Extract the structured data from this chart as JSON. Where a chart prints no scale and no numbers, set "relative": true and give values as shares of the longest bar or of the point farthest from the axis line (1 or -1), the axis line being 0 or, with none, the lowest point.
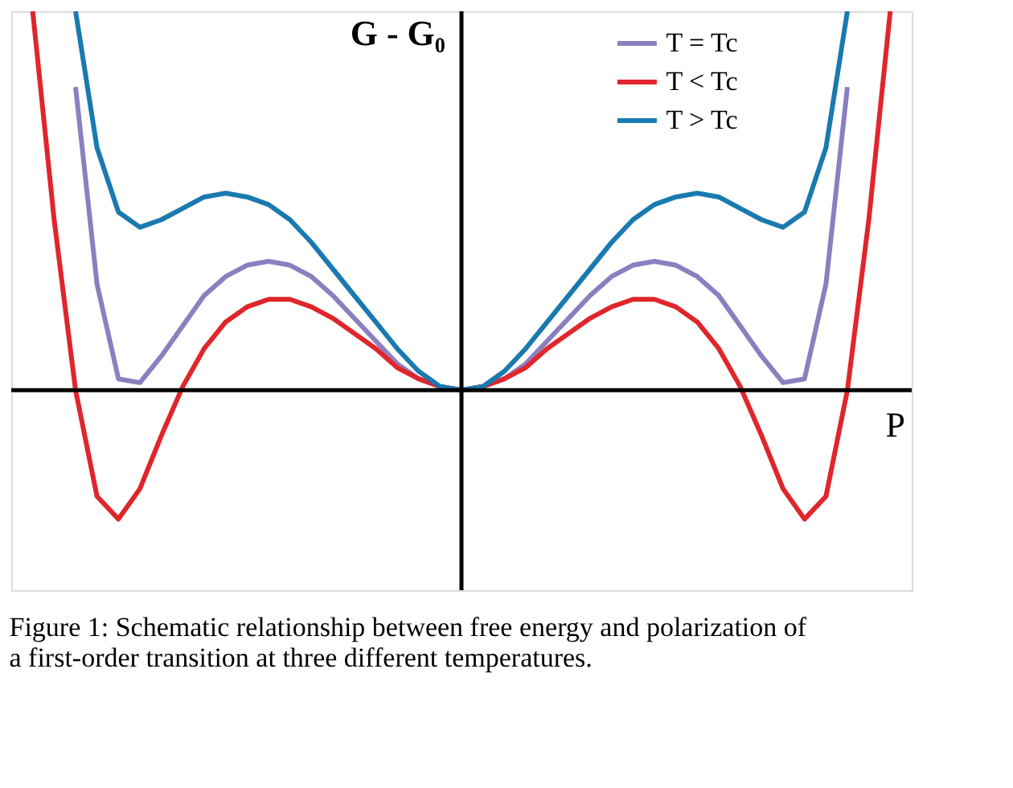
{
  "chart_data": {
    "type": "line",
    "relative": true,
    "xlabel": "P",
    "ylabel": "G - G₀",
    "legend": "top right",
    "tick_labels": false,
    "grid": false,
    "marker": "none",
    "line_style": "solid",
    "annotations": [
      "Figure 1: Schematic relationship between free energy and polarization of a first-order transition at three different temperatures."
    ],
    "categories": [
      null,
      null,
      null,
      null,
      null,
      null,
      null,
      null,
      null,
      null,
      null,
      null,
      null,
      null,
      null,
      null,
      null,
      null,
      null,
      null,
      null,
      null,
      null,
      null,
      null,
      null,
      null,
      null,
      null,
      null,
      null,
      null,
      null,
      null,
      null,
      null,
      null,
      null,
      null,
      null,
      null
    ],
    "series": [
      {
        "name": "T = Tc",
        "color": "#8c7fc0",
        "values": [
          null,
          null,
          0.8,
          0.28,
          0.03,
          0.02,
          0.09,
          0.17,
          0.25,
          0.3,
          0.33,
          0.34,
          0.33,
          0.3,
          0.25,
          0.19,
          0.13,
          0.07,
          0.03,
          0.01,
          0,
          0.01,
          0.03,
          0.07,
          0.13,
          0.19,
          0.25,
          0.3,
          0.33,
          0.34,
          0.33,
          0.3,
          0.25,
          0.17,
          0.09,
          0.02,
          0.03,
          0.28,
          0.8,
          null,
          null
        ]
      },
      {
        "name": "T < Tc",
        "color": "#e0262b",
        "values": [
          1.0,
          0.45,
          0.0,
          -0.28,
          -0.34,
          -0.26,
          -0.12,
          0.01,
          0.11,
          0.18,
          0.22,
          0.24,
          0.24,
          0.22,
          0.19,
          0.15,
          0.11,
          0.06,
          0.03,
          0.01,
          0,
          0.01,
          0.03,
          0.06,
          0.11,
          0.15,
          0.19,
          0.22,
          0.24,
          0.24,
          0.22,
          0.18,
          0.11,
          0.01,
          -0.12,
          -0.26,
          -0.34,
          -0.28,
          0.0,
          0.45,
          1.0
        ]
      },
      {
        "name": "T > Tc",
        "color": "#1a7ab0",
        "values": [
          null,
          null,
          1.0,
          0.64,
          0.47,
          0.43,
          0.45,
          0.48,
          0.51,
          0.52,
          0.51,
          0.49,
          0.45,
          0.39,
          0.32,
          0.25,
          0.18,
          0.11,
          0.05,
          0.01,
          0,
          0.01,
          0.05,
          0.11,
          0.18,
          0.25,
          0.32,
          0.39,
          0.45,
          0.49,
          0.51,
          0.52,
          0.51,
          0.48,
          0.45,
          0.43,
          0.47,
          0.64,
          1.0,
          null,
          null
        ]
      }
    ]
  }
}
